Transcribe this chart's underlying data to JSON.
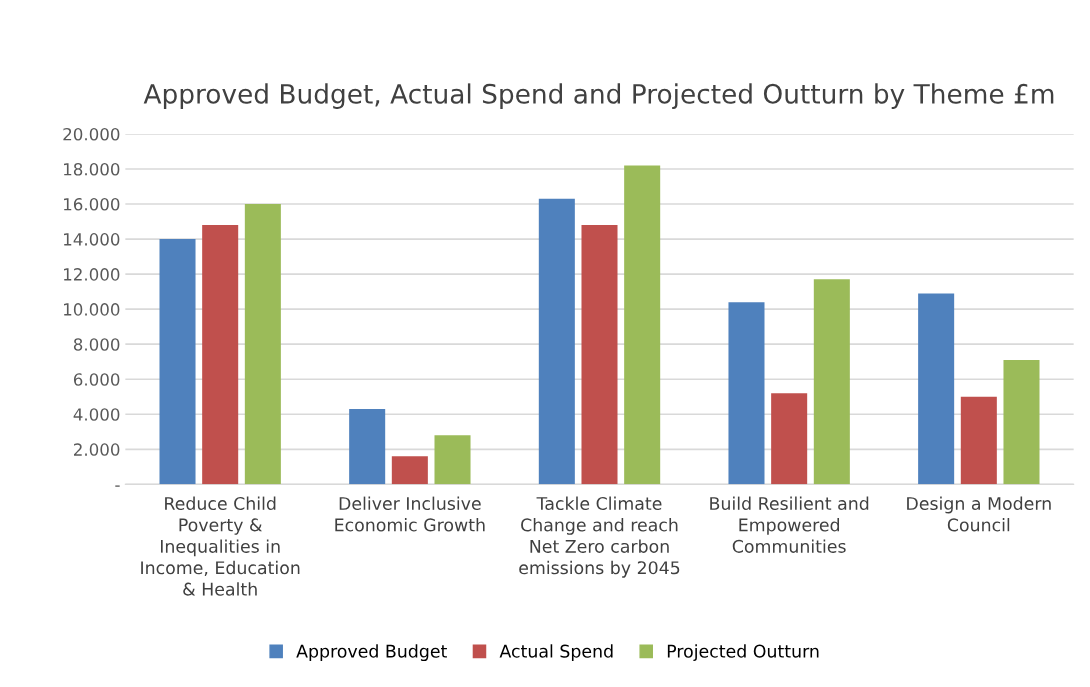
{
  "chart_data": {
    "type": "bar",
    "title": "Approved Budget, Actual Spend and Projected Outturn by Theme £m",
    "categories": [
      "Reduce Child Poverty & Inequalities in Income, Education & Health",
      "Deliver Inclusive Economic Growth",
      "Tackle Climate Change and reach Net Zero carbon emissions by 2045",
      "Build Resilient and Empowered Communities",
      "Design a Modern Council"
    ],
    "series": [
      {
        "name": "Approved Budget",
        "color": "#4f81bd",
        "values": [
          14.0,
          4.3,
          16.3,
          10.4,
          10.9
        ]
      },
      {
        "name": "Actual Spend",
        "color": "#c0504d",
        "values": [
          14.8,
          1.6,
          14.8,
          5.2,
          5.0
        ]
      },
      {
        "name": "Projected Outturn",
        "color": "#9bbb59",
        "values": [
          16.0,
          2.8,
          18.2,
          11.7,
          7.1
        ]
      }
    ],
    "ylim": [
      0,
      20
    ],
    "yticks": [
      {
        "value": 0,
        "label": "-"
      },
      {
        "value": 2,
        "label": "2.000"
      },
      {
        "value": 4,
        "label": "4.000"
      },
      {
        "value": 6,
        "label": "6.000"
      },
      {
        "value": 8,
        "label": "8.000"
      },
      {
        "value": 10,
        "label": "10.000"
      },
      {
        "value": 12,
        "label": "12.000"
      },
      {
        "value": 14,
        "label": "14.000"
      },
      {
        "value": 16,
        "label": "16.000"
      },
      {
        "value": 18,
        "label": "18.000"
      },
      {
        "value": 20,
        "label": "20.000"
      }
    ],
    "grid": "y",
    "legend": "bottom"
  }
}
